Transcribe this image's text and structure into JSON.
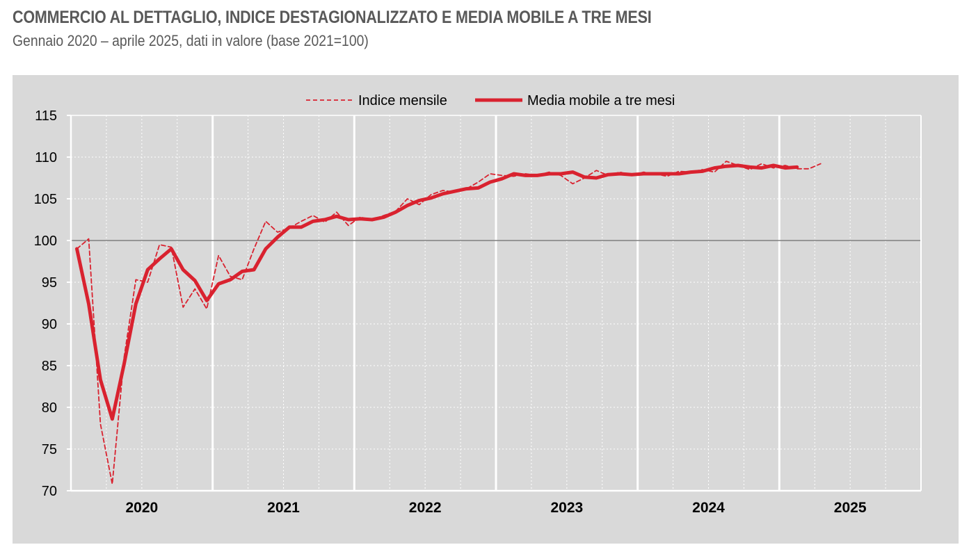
{
  "header": {
    "title": "COMMERCIO AL DETTAGLIO, INDICE DESTAGIONALIZZATO E MEDIA MOBILE A TRE MESI",
    "subtitle": "Gennaio 2020 – aprile 2025, dati in valore (base 2021=100)"
  },
  "colors": {
    "series": "#d9222f",
    "background": "#d9d9d9",
    "grid": "#ffffff",
    "reference_line": "#7f7f7f"
  },
  "chart_data": {
    "type": "line",
    "title": "COMMERCIO AL DETTAGLIO, INDICE DESTAGIONALIZZATO E MEDIA MOBILE A TRE MESI",
    "subtitle": "Gennaio 2020 – aprile 2025, dati in valore (base 2021=100)",
    "xlabel": "",
    "ylabel": "",
    "ylim": [
      70,
      115
    ],
    "yticks": [
      70,
      75,
      80,
      85,
      90,
      95,
      100,
      105,
      110,
      115
    ],
    "x_range": [
      "2020-01",
      "2025-12"
    ],
    "year_labels": [
      "2020",
      "2021",
      "2022",
      "2023",
      "2024",
      "2025"
    ],
    "reference_line": 100,
    "grid": true,
    "legend_position": "top-center",
    "series": [
      {
        "name": "Indice mensile",
        "style": "dashed",
        "start": "2020-01",
        "values": [
          99.0,
          100.2,
          78.0,
          70.8,
          86.0,
          95.3,
          95.0,
          99.5,
          99.2,
          92.0,
          94.2,
          91.8,
          98.2,
          95.7,
          95.3,
          99.0,
          102.3,
          101.0,
          101.5,
          102.3,
          103.0,
          102.2,
          103.4,
          101.8,
          102.8,
          102.5,
          103.0,
          103.5,
          105.0,
          104.3,
          105.5,
          106.0,
          105.8,
          106.2,
          107.0,
          108.0,
          107.8,
          107.7,
          108.0,
          107.8,
          108.2,
          107.8,
          106.8,
          107.5,
          108.4,
          107.8,
          108.2,
          107.8,
          108.2,
          108.0,
          107.7,
          108.3,
          108.2,
          108.5,
          108.2,
          109.5,
          109.0,
          108.5,
          109.2,
          108.7,
          109.0,
          108.6,
          108.6,
          109.2
        ]
      },
      {
        "name": "Media mobile a tre mesi",
        "style": "solid",
        "start": "2020-01",
        "values": [
          99.0,
          92.4,
          83.3,
          78.6,
          85.2,
          92.4,
          96.5,
          97.8,
          99.0,
          96.5,
          95.2,
          92.8,
          94.8,
          95.3,
          96.3,
          96.5,
          99.0,
          100.4,
          101.6,
          101.6,
          102.3,
          102.5,
          102.9,
          102.5,
          102.6,
          102.5,
          102.8,
          103.4,
          104.2,
          104.8,
          105.1,
          105.6,
          105.9,
          106.2,
          106.3,
          107.0,
          107.4,
          108.0,
          107.8,
          107.8,
          108.0,
          108.0,
          108.2,
          107.6,
          107.5,
          107.9,
          108.0,
          107.9,
          108.0,
          108.0,
          108.0,
          108.0,
          108.2,
          108.3,
          108.7,
          108.9,
          109.0,
          108.8,
          108.7,
          109.0,
          108.7,
          108.8
        ]
      }
    ]
  }
}
